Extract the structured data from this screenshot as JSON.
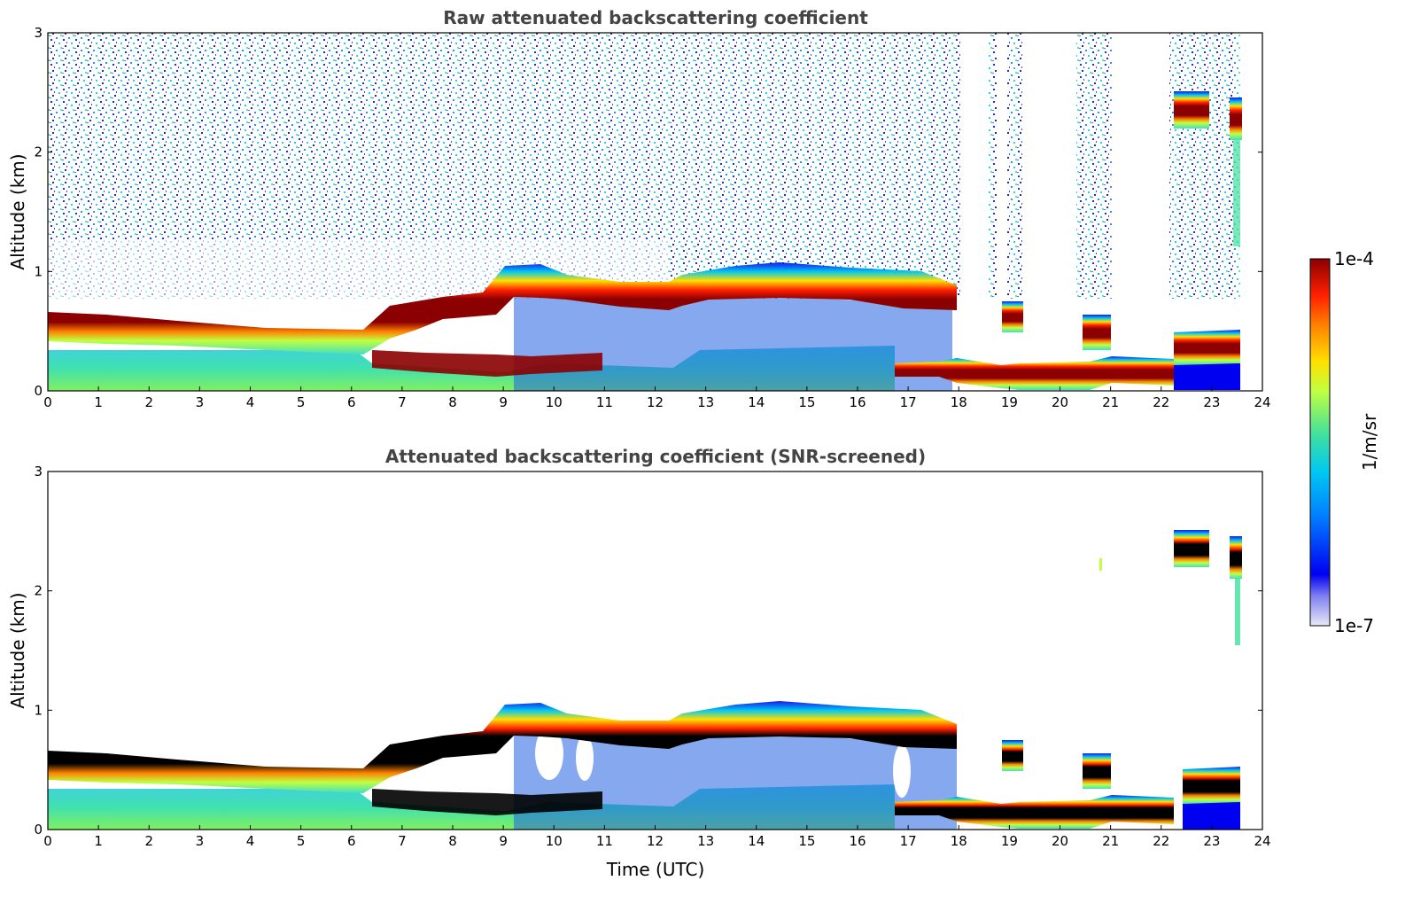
{
  "colors": {
    "background": "#ffffff",
    "title": "#444444",
    "colormap": [
      "#e8e8f8",
      "#0000f0",
      "#0080ff",
      "#00d0e0",
      "#40e0a0",
      "#c0ff40",
      "#ffe000",
      "#ff8000",
      "#ff2000",
      "#8b0000"
    ],
    "screened_peak": "#000000"
  },
  "chart_data": [
    {
      "type": "heatmap",
      "title": "Raw attenuated backscattering coefficient",
      "xlabel": "",
      "ylabel": "Altitude (km)",
      "xlim": [
        0,
        24
      ],
      "ylim": [
        0,
        3
      ],
      "xticks": [
        "0",
        "1",
        "2",
        "3",
        "4",
        "5",
        "6",
        "7",
        "8",
        "9",
        "10",
        "11",
        "12",
        "13",
        "14",
        "15",
        "16",
        "17",
        "18",
        "19",
        "20",
        "21",
        "22",
        "23",
        "24"
      ],
      "yticks": [
        "0",
        "1",
        "2",
        "3"
      ],
      "data_end_hour": 23.6,
      "cloud_layer_km": [
        {
          "from_h": 0,
          "to_h": 6.3,
          "top_km": 0.6,
          "peak_km": 0.45
        },
        {
          "from_h": 6.3,
          "to_h": 9.0,
          "top_km": 0.75,
          "peak_km": 0.65
        },
        {
          "from_h": 9.0,
          "to_h": 12.5,
          "top_km": 0.95,
          "peak_km": 0.8
        },
        {
          "from_h": 12.5,
          "to_h": 13.6,
          "top_km": 0.9,
          "peak_km": 0.8
        },
        {
          "from_h": 13.6,
          "to_h": 18.0,
          "top_km": 1.0,
          "peak_km": 0.85
        },
        {
          "from_h": 18.0,
          "to_h": 22.3,
          "top_km": 0.3,
          "peak_km": 0.15
        },
        {
          "from_h": 22.3,
          "to_h": 23.6,
          "top_km": 0.5,
          "peak_km": 0.3
        }
      ],
      "upper_layer_km": {
        "from_h": 22.5,
        "to_h": 23.6,
        "alt_km": 2.3
      }
    },
    {
      "type": "heatmap",
      "title": "Attenuated backscattering coefficient (SNR-screened)",
      "xlabel": "Time (UTC)",
      "ylabel": "Altitude (km)",
      "xlim": [
        0,
        24
      ],
      "ylim": [
        0,
        3
      ],
      "xticks": [
        "0",
        "1",
        "2",
        "3",
        "4",
        "5",
        "6",
        "7",
        "8",
        "9",
        "10",
        "11",
        "12",
        "13",
        "14",
        "15",
        "16",
        "17",
        "18",
        "19",
        "20",
        "21",
        "22",
        "23",
        "24"
      ],
      "yticks": [
        "0",
        "1",
        "2",
        "3"
      ],
      "data_end_hour": 23.6
    }
  ],
  "colorbar": {
    "label": "1/m/sr",
    "max_label": "1e-4",
    "min_label": "1e-7",
    "range": [
      1e-07,
      0.0001
    ],
    "scale": "log"
  }
}
